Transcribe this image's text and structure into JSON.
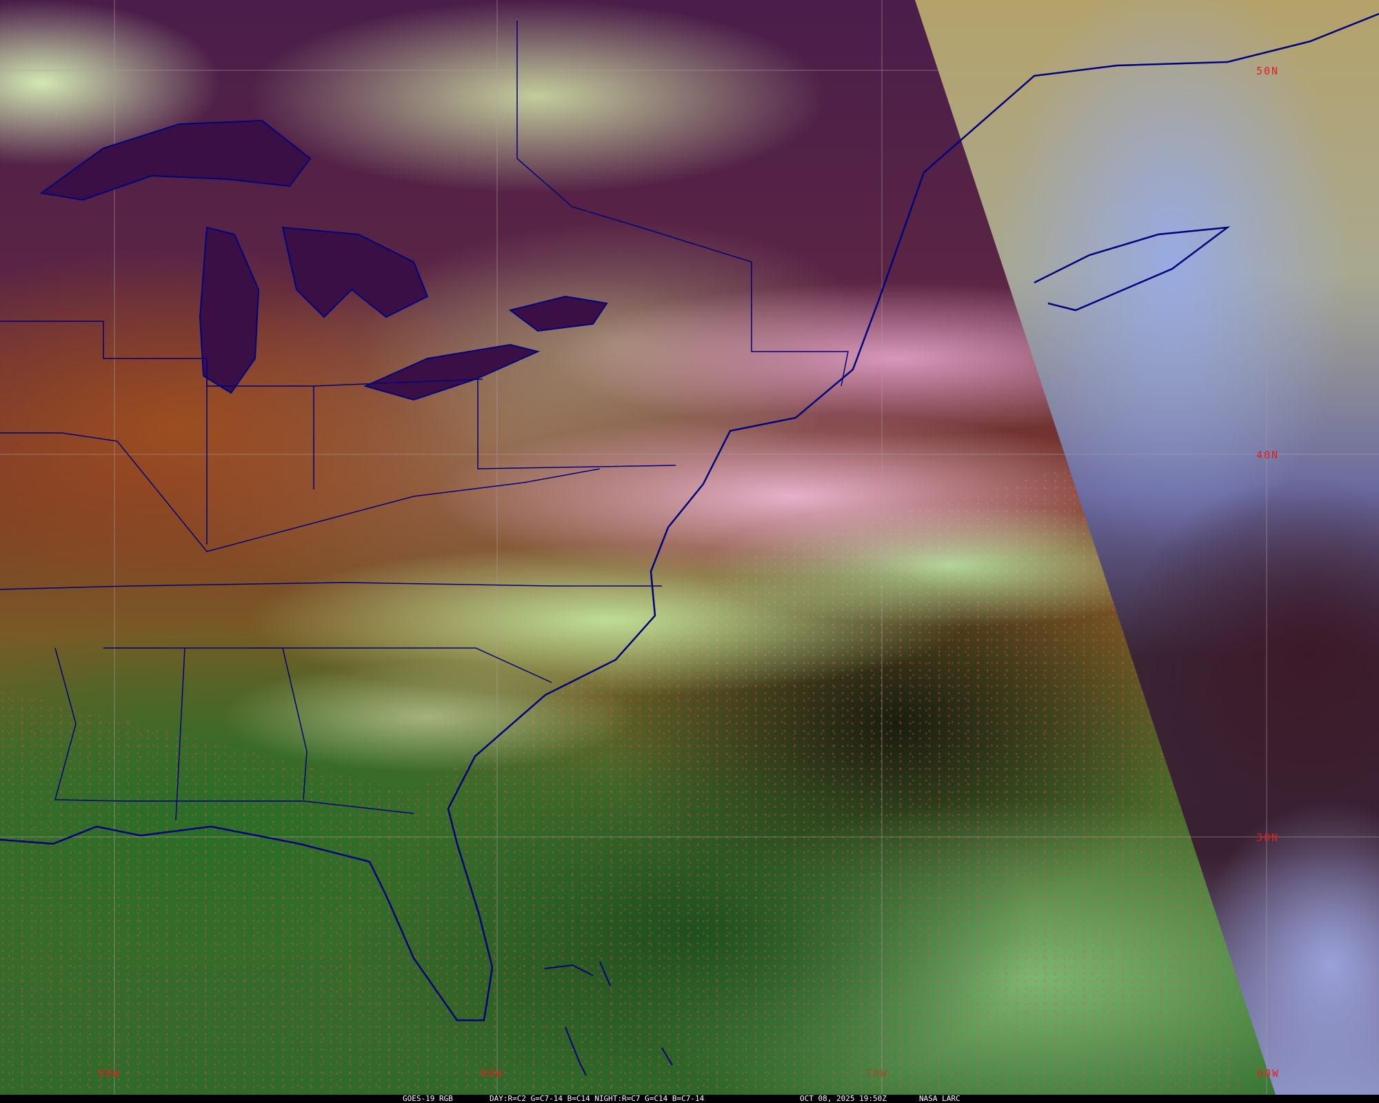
{
  "image": {
    "product": "GOES-19 RGB",
    "recipe": "DAY:R=C2 G=C7-14 B=C14 NIGHT:R=C7 G=C14 B=C7-14",
    "timestamp": "OCT 08, 2025 19:50Z",
    "credit": "NASA LARC"
  },
  "grid": {
    "latitude_labels": [
      "50N",
      "40N",
      "30N"
    ],
    "longitude_labels": [
      "90W",
      "80W",
      "70W",
      "60W"
    ],
    "grid_color": "#b0a0a0",
    "label_color": "#e02020",
    "boundary_color": "#00007a"
  }
}
